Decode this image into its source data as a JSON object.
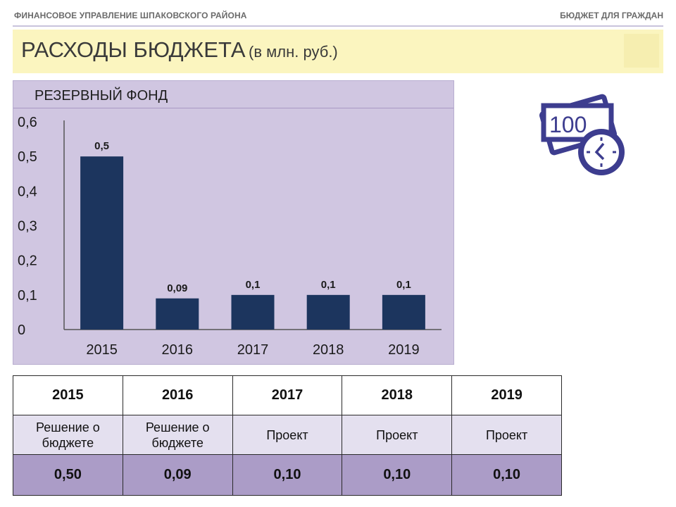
{
  "header": {
    "org": "ФИНАНСОВОЕ УПРАВЛЕНИЕ ШПАКОВСКОГО РАЙОНА",
    "section": "БЮДЖЕТ ДЛЯ ГРАЖДАН"
  },
  "page": {
    "title": "РАСХОДЫ БЮДЖЕТА",
    "unit": "(в млн. руб.)"
  },
  "icon": {
    "name": "banknote-clock-icon",
    "label": "100",
    "color": "#3d3d8f"
  },
  "chart_data": {
    "type": "bar",
    "title": "РЕЗЕРВНЫЙ ФОНД",
    "categories": [
      "2015",
      "2016",
      "2017",
      "2018",
      "2019"
    ],
    "values": [
      0.5,
      0.09,
      0.1,
      0.1,
      0.1
    ],
    "value_labels": [
      "0,5",
      "0,09",
      "0,1",
      "0,1",
      "0,1"
    ],
    "yticks": [
      "0",
      "0,1",
      "0,2",
      "0,3",
      "0,4",
      "0,5",
      "0,6"
    ],
    "ylim": [
      0,
      0.6
    ],
    "bar_color": "#1c355e",
    "grid": false,
    "legend": "none"
  },
  "table": {
    "years": [
      "2015",
      "2016",
      "2017",
      "2018",
      "2019"
    ],
    "status": [
      "Решение о бюджете",
      "Решение о бюджете",
      "Проект",
      "Проект",
      "Проект"
    ],
    "values": [
      "0,50",
      "0,09",
      "0,10",
      "0,10",
      "0,10"
    ]
  }
}
